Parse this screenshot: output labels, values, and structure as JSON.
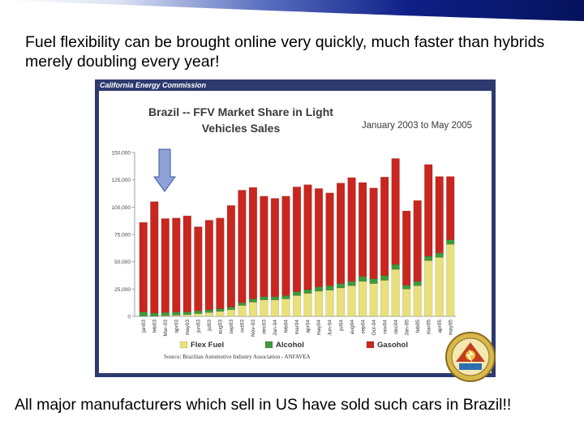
{
  "slide": {
    "top_caption": "Fuel flexibility can be brought online very quickly, much faster than hybrids merely doubling every year!",
    "bottom_caption": "All major manufacturers which sell in US have sold such cars in Brazil!!"
  },
  "embedded_slide": {
    "header": "California Energy Commission",
    "source": "Source: Brazilian Automotive Industry Association - ANFAVEA"
  },
  "colors": {
    "banner": "#0a1a6e",
    "frame": "#2e3a6e",
    "gasohol": "#c8261e",
    "alcohol": "#3f9a3a",
    "flex_fuel": "#e8e07a"
  },
  "chart_data": {
    "type": "bar",
    "stacked": true,
    "title": "Brazil -- FFV Market Share in Light Vehicles Sales",
    "subtitle": "January 2003 to May 2005",
    "ylim": [
      0,
      150000
    ],
    "yticks": [
      "0",
      "25,000",
      "50,000",
      "75,000",
      "100,000",
      "125,000",
      "150,000"
    ],
    "categories": [
      "jan03",
      "feb03",
      "Mar-03",
      "apr03",
      "may03",
      "jun03",
      "jul03",
      "aug03",
      "sep03",
      "oct03",
      "Nov-03",
      "dec03",
      "Jan-04",
      "feb04",
      "mar04",
      "apr04",
      "may04",
      "Jun-04",
      "jul04",
      "aug04",
      "sep04",
      "Oct-04",
      "nov04",
      "dec04",
      "Jan-05",
      "feb05",
      "mar05",
      "apr05",
      "may05"
    ],
    "series": [
      {
        "name": "Flex Fuel",
        "values": [
          0,
          0,
          500,
          1000,
          1500,
          2500,
          3500,
          4500,
          6000,
          10000,
          13000,
          15000,
          15000,
          16000,
          19000,
          21000,
          23000,
          24000,
          26000,
          28000,
          32000,
          30000,
          33000,
          43000,
          25000,
          28000,
          51000,
          54000,
          66000
        ]
      },
      {
        "name": "Alcohol",
        "values": [
          4000,
          3000,
          3000,
          3000,
          2500,
          2500,
          2500,
          2500,
          2500,
          2500,
          3000,
          3000,
          3000,
          3000,
          3500,
          3500,
          4000,
          4000,
          4000,
          4000,
          4500,
          4500,
          4500,
          4500,
          3500,
          4000,
          4000,
          4000,
          4000
        ]
      },
      {
        "name": "Gasohol",
        "values": [
          82000,
          102000,
          86000,
          86000,
          88000,
          77000,
          82000,
          83000,
          93000,
          103000,
          102000,
          92000,
          90000,
          91000,
          96000,
          96000,
          90000,
          85000,
          92000,
          95000,
          86000,
          83000,
          90000,
          97000,
          68000,
          74000,
          84000,
          70000,
          58000
        ]
      }
    ],
    "legend": [
      "Flex Fuel",
      "Alcohol",
      "Gasohol"
    ],
    "legend_position": "bottom",
    "grid": false
  }
}
